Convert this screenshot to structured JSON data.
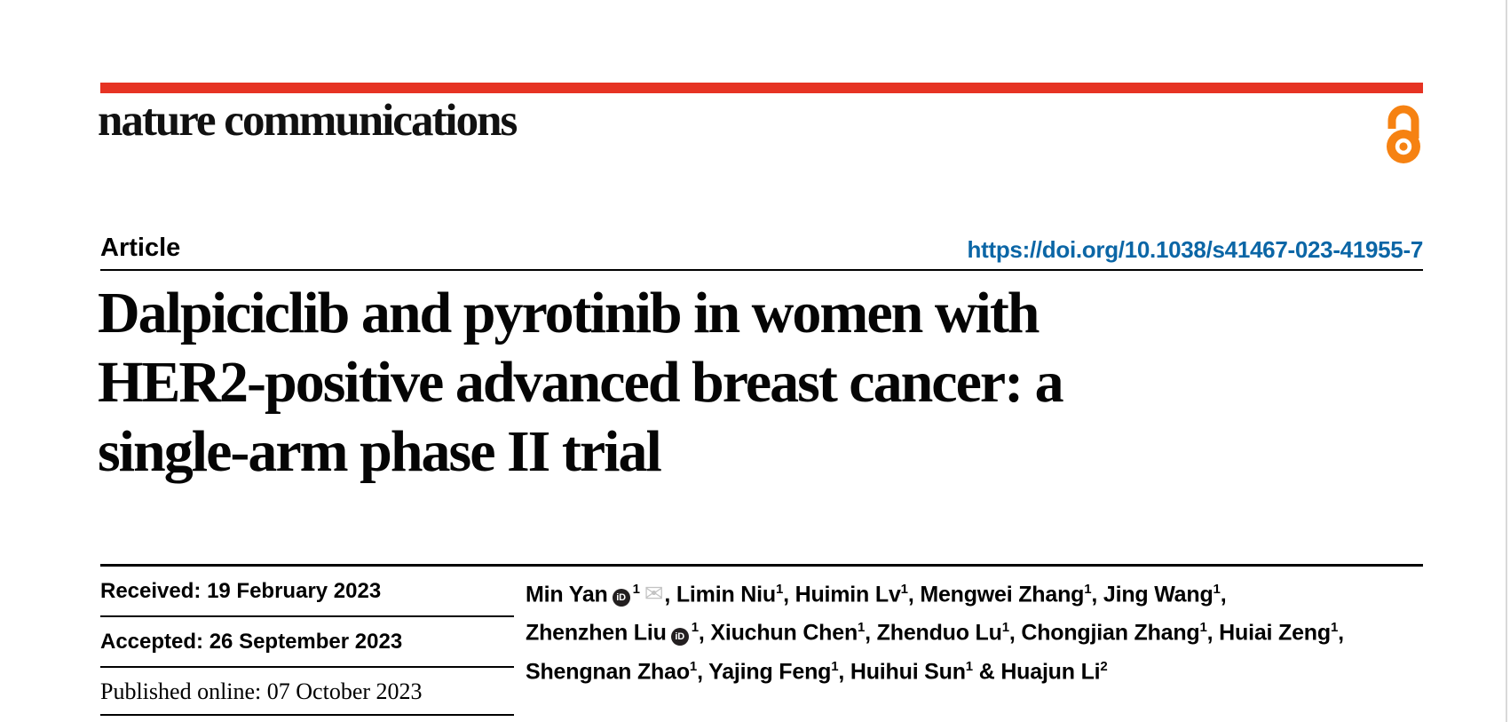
{
  "journal": {
    "name": "nature communications"
  },
  "article_header": {
    "type_label": "Article",
    "doi": "https://doi.org/10.1038/s41467-023-41955-7"
  },
  "title": {
    "lines": [
      "Dalpiciclib and pyrotinib in women with",
      "HER2-positive advanced breast cancer: a",
      "single-arm phase II trial"
    ]
  },
  "dates": {
    "rows": [
      {
        "label": "Received:",
        "value": "19 February 2023"
      },
      {
        "label": "Accepted:",
        "value": "26 September 2023"
      },
      {
        "label": "Published online:",
        "value": "07 October 2023"
      }
    ]
  },
  "authors": {
    "lines": [
      [
        {
          "n": "Min Yan",
          "s": "1",
          "orcid": true,
          "env": true,
          "sep": ", "
        },
        {
          "n": "Limin Niu",
          "s": "1",
          "sep": ", "
        },
        {
          "n": "Huimin Lv",
          "s": "1",
          "sep": ", "
        },
        {
          "n": "Mengwei Zhang",
          "s": "1",
          "sep": ", "
        },
        {
          "n": "Jing Wang",
          "s": "1",
          "sep": ","
        }
      ],
      [
        {
          "n": "Zhenzhen Liu",
          "s": "1",
          "orcid": true,
          "sep": ", "
        },
        {
          "n": "Xiuchun Chen",
          "s": "1",
          "sep": ", "
        },
        {
          "n": "Zhenduo Lu",
          "s": "1",
          "sep": ", "
        },
        {
          "n": "Chongjian Zhang",
          "s": "1",
          "sep": ", "
        },
        {
          "n": "Huiai Zeng",
          "s": "1",
          "sep": ","
        }
      ],
      [
        {
          "n": "Shengnan Zhao",
          "s": "1",
          "sep": ", "
        },
        {
          "n": "Yajing Feng",
          "s": "1",
          "sep": ", "
        },
        {
          "n": "Huihui Sun",
          "s": "1",
          "sep": " & "
        },
        {
          "n": "Huajun Li",
          "s": "2",
          "sep": ""
        }
      ]
    ]
  },
  "icons": {
    "orcid_text": "iD",
    "envelope_glyph": "✉",
    "open_access": "open-access-lock-icon"
  },
  "colors": {
    "brand_red": "#e63323",
    "link_blue": "#0b66a6",
    "open_access_orange": "#f68212",
    "text_black": "#000000",
    "gray_line": "#d9d9d9",
    "envelope_gray": "#c3c3c3",
    "orcid_dark": "#231f20"
  }
}
